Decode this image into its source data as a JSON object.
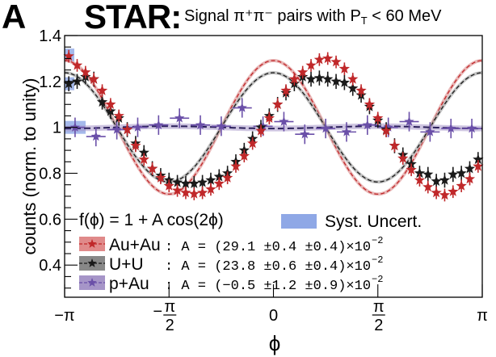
{
  "header": {
    "panel_letter": "A",
    "experiment": "STAR",
    "colon": ":",
    "subtitle": "Signal π⁺π⁻ pairs with P",
    "subtitle_sub": "T",
    "subtitle_tail": " < 60 MeV"
  },
  "chart_data": {
    "type": "scatter",
    "title": "STAR: Signal π⁺π⁻ pairs with P_T < 60 MeV",
    "xlabel": "ϕ",
    "ylabel": "counts (norm. to unity)",
    "xlim": [
      -3.14159,
      3.14159
    ],
    "ylim": [
      0.26,
      1.4
    ],
    "xticks": [
      {
        "value": -3.14159,
        "label": "−π",
        "num": "−π",
        "den": ""
      },
      {
        "value": -1.5708,
        "label": "−π/2",
        "num": "π",
        "den": "2",
        "sign": "−"
      },
      {
        "value": 0,
        "label": "0",
        "num": "0",
        "den": ""
      },
      {
        "value": 1.5708,
        "label": "π/2",
        "num": "π",
        "den": "2",
        "sign": ""
      },
      {
        "value": 3.14159,
        "label": "π",
        "num": "π",
        "den": ""
      }
    ],
    "yticks": [
      {
        "value": 1.4,
        "label": "1.4"
      },
      {
        "value": 1.2,
        "label": "1.2"
      },
      {
        "value": 1.0,
        "label": "1"
      },
      {
        "value": 0.8,
        "label": "0.8"
      },
      {
        "value": 0.6,
        "label": "0.6"
      },
      {
        "value": 0.4,
        "label": "0.4"
      }
    ],
    "grid": false,
    "fit_function": "f(ϕ) = 1 + A cos(2ϕ)",
    "syst_label": "Syst. Uncert.",
    "syst_color": "#8fa8e6",
    "series": [
      {
        "name": "Au+Au",
        "color": "#c0282a",
        "swatch": "#e08a8a",
        "A": 0.291,
        "label": "Au+Au",
        "result": ": A = (29.1 ±0.4 ±0.4)×10",
        "exp": "−2",
        "nbins": 50,
        "values": [
          1.31,
          1.27,
          1.24,
          1.21,
          1.16,
          1.1,
          1.05,
          0.99,
          0.92,
          0.86,
          0.82,
          0.78,
          0.745,
          0.725,
          0.715,
          0.71,
          0.715,
          0.73,
          0.755,
          0.78,
          0.83,
          0.875,
          0.93,
          0.985,
          1.04,
          1.1,
          1.16,
          1.21,
          1.24,
          1.27,
          1.295,
          1.3,
          1.285,
          1.255,
          1.21,
          1.16,
          1.1,
          1.04,
          0.985,
          0.92,
          0.865,
          0.815,
          0.77,
          0.74,
          0.715,
          0.705,
          0.72,
          0.745,
          0.775,
          0.83
        ],
        "err": 0.01
      },
      {
        "name": "U+U",
        "color": "#1a1a1a",
        "swatch": "#888888",
        "A": 0.238,
        "label": "U+U",
        "result": ": A = (23.8 ±0.6 ±0.4)×10",
        "exp": "−2",
        "nbins": 50,
        "values": [
          1.19,
          1.2,
          1.22,
          1.21,
          1.11,
          1.07,
          1.04,
          0.99,
          0.93,
          0.89,
          0.82,
          0.79,
          0.77,
          0.76,
          0.755,
          0.755,
          0.76,
          0.77,
          0.785,
          0.8,
          0.85,
          0.9,
          0.95,
          1.0,
          1.05,
          1.1,
          1.15,
          1.19,
          1.22,
          1.21,
          1.215,
          1.21,
          1.2,
          1.195,
          1.17,
          1.14,
          1.09,
          1.03,
          0.99,
          0.92,
          0.88,
          0.84,
          0.8,
          0.795,
          0.765,
          0.77,
          0.795,
          0.8,
          0.82,
          0.86
        ],
        "err": 0.015
      },
      {
        "name": "p+Au",
        "color": "#6a4fa8",
        "swatch": "#a695c8",
        "A": -0.005,
        "label": "p+Au",
        "result": ": A = (−0.5 ±1.2 ±0.9)×10",
        "exp": "−2",
        "nbins": 20,
        "values": [
          1.0,
          0.96,
          0.99,
          1.0,
          1.01,
          1.04,
          1.01,
          1.005,
          1.085,
          1.005,
          1.025,
          0.97,
          0.995,
          0.98,
          1.01,
          1.0,
          1.025,
          0.98,
          0.995,
          0.995
        ],
        "err": 0.025
      }
    ]
  }
}
